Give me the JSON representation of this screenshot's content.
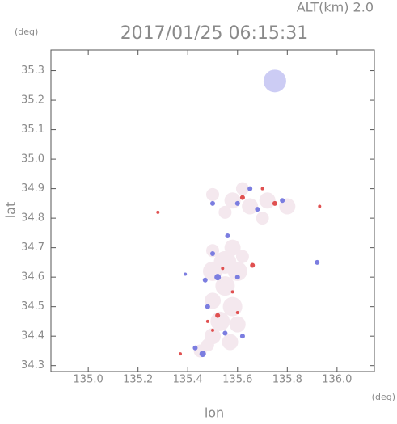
{
  "chart_data": {
    "type": "scatter",
    "title": "2017/01/25 06:15:31",
    "subtitle": "ALT(km) 2.0",
    "y_unit": "(deg)",
    "x_unit": "(deg)",
    "xlabel": "lon",
    "ylabel": "lat",
    "xlim": [
      134.85,
      136.15
    ],
    "ylim": [
      34.28,
      35.37
    ],
    "xticks": [
      {
        "value": 135.0,
        "label": "135.0"
      },
      135.2,
      135.4,
      135.6,
      135.8,
      {
        "value": 136.0,
        "label": "136.0"
      }
    ],
    "yticks": [
      34.3,
      34.4,
      34.5,
      34.6,
      34.7,
      34.8,
      34.9,
      {
        "value": 35.0,
        "label": "35.0"
      },
      35.1,
      35.2,
      35.3
    ],
    "series": [
      {
        "color": "#f4e8ee",
        "x": [
          135.55,
          135.5,
          135.6,
          135.55,
          135.5,
          135.58,
          135.53,
          135.6,
          135.5,
          135.57,
          135.48,
          135.45,
          135.58,
          135.62,
          135.5,
          135.5,
          135.58,
          135.65,
          135.72,
          135.8,
          135.62,
          135.55,
          135.7
        ],
        "y": [
          34.65,
          34.62,
          34.62,
          34.57,
          34.52,
          34.5,
          34.45,
          34.44,
          34.4,
          34.38,
          34.37,
          34.35,
          34.7,
          34.67,
          34.69,
          34.88,
          34.86,
          34.84,
          34.86,
          34.84,
          34.9,
          34.82,
          34.8
        ],
        "sizes": [
          14,
          12,
          12,
          12,
          10,
          12,
          12,
          10,
          10,
          10,
          8,
          8,
          10,
          8,
          8,
          8,
          10,
          10,
          10,
          10,
          8,
          8,
          8
        ]
      },
      {
        "color": "#ccccf4",
        "x": [
          135.75
        ],
        "y": [
          35.265
        ],
        "sizes": [
          14
        ]
      },
      {
        "color": "#7b7de0",
        "x": [
          135.47,
          135.52,
          135.5,
          135.6,
          135.46,
          135.43,
          135.55,
          135.62,
          135.48,
          135.6,
          135.68,
          135.92,
          135.39,
          135.5,
          135.65,
          135.78,
          135.56
        ],
        "y": [
          34.59,
          34.6,
          34.68,
          34.6,
          34.34,
          34.36,
          34.41,
          34.4,
          34.5,
          34.85,
          34.83,
          34.65,
          34.61,
          34.85,
          34.9,
          34.86,
          34.74
        ],
        "sizes": [
          3,
          4,
          3,
          3,
          4,
          3,
          3,
          3,
          3,
          3,
          3,
          3,
          2,
          3,
          3,
          3,
          3
        ]
      },
      {
        "color": "#e05050",
        "x": [
          135.37,
          135.28,
          135.66,
          135.52,
          135.58,
          135.5,
          135.6,
          135.62,
          135.75,
          135.7,
          135.93,
          135.54,
          135.48
        ],
        "y": [
          34.34,
          34.82,
          34.64,
          34.47,
          34.55,
          34.42,
          34.48,
          34.87,
          34.85,
          34.9,
          34.84,
          34.63,
          34.45
        ],
        "sizes": [
          2,
          2,
          3,
          3,
          2,
          2,
          2,
          3,
          3,
          2,
          2,
          2,
          2
        ]
      }
    ]
  }
}
